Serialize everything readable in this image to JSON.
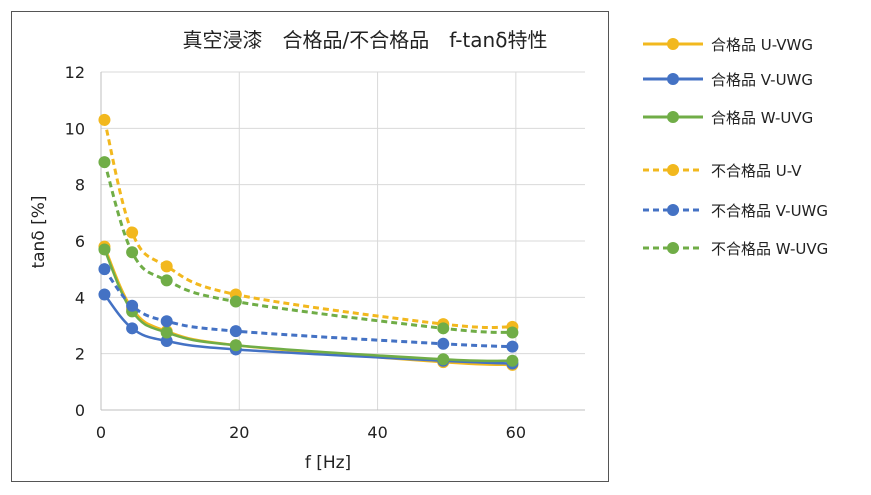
{
  "chart_data": {
    "type": "line",
    "title": "真空浸漆　合格品/不合格品　f-tanδ特性",
    "xlabel": "f [Hz]",
    "ylabel": "tanδ [%]",
    "xlim": [
      0,
      70
    ],
    "ylim": [
      0,
      12
    ],
    "xticks": [
      0,
      20,
      40,
      60
    ],
    "yticks": [
      0,
      2,
      4,
      6,
      8,
      10,
      12
    ],
    "grid": true,
    "legend_position": "right",
    "x": [
      0.5,
      4.5,
      9.5,
      19.5,
      49.5,
      59.5
    ],
    "series": [
      {
        "name": "合格品 U-VWG",
        "color": "#F2B81E",
        "style": "solid",
        "values": [
          5.8,
          3.6,
          2.8,
          2.3,
          1.7,
          1.6
        ]
      },
      {
        "name": "合格品 V-UWG",
        "color": "#4472C4",
        "style": "solid",
        "values": [
          4.1,
          2.9,
          2.45,
          2.15,
          1.75,
          1.65
        ]
      },
      {
        "name": "合格品 W-UVG",
        "color": "#70AD47",
        "style": "solid",
        "values": [
          5.7,
          3.5,
          2.75,
          2.3,
          1.8,
          1.75
        ]
      },
      {
        "name": "不合格品 U-V",
        "color": "#F2B81E",
        "style": "dashed",
        "values": [
          10.3,
          6.3,
          5.1,
          4.1,
          3.05,
          2.95
        ]
      },
      {
        "name": "不合格品 V-UWG",
        "color": "#4472C4",
        "style": "dashed",
        "values": [
          5.0,
          3.7,
          3.15,
          2.8,
          2.35,
          2.25
        ]
      },
      {
        "name": "不合格品 W-UVG",
        "color": "#70AD47",
        "style": "dashed",
        "values": [
          8.8,
          5.6,
          4.6,
          3.85,
          2.9,
          2.75
        ]
      }
    ]
  }
}
